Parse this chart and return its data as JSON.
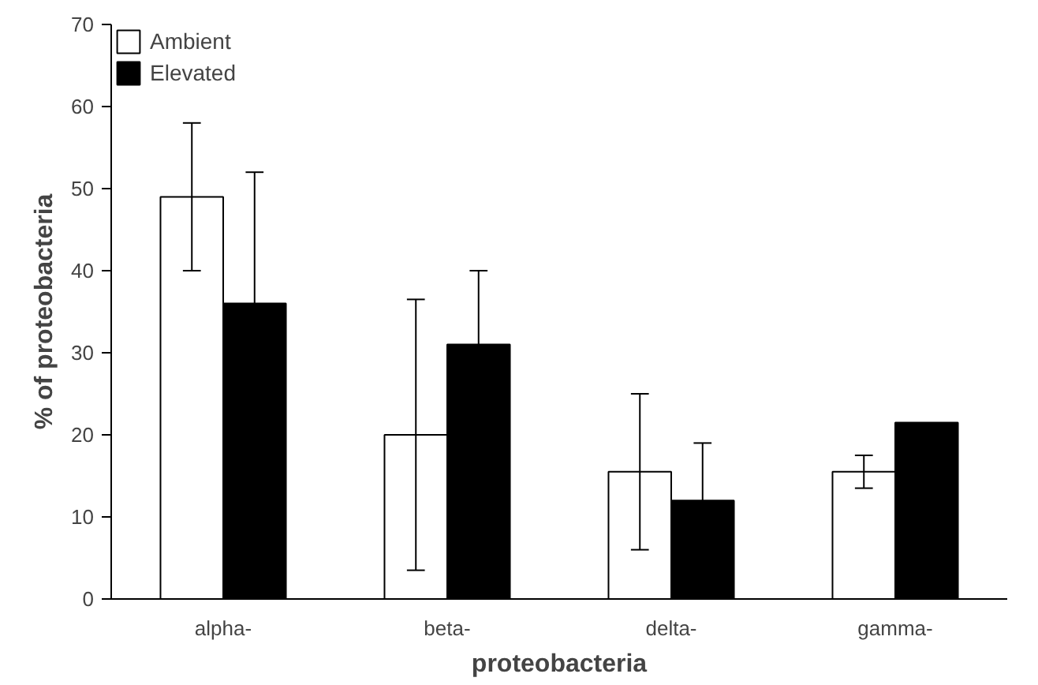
{
  "chart_data": {
    "type": "bar",
    "xlabel": "proteobacteria",
    "ylabel": "% of proteobacteria",
    "categories": [
      "alpha-",
      "beta-",
      "delta-",
      "gamma-"
    ],
    "series": [
      {
        "name": "Ambient",
        "color": "#ffffff",
        "values": [
          49,
          20,
          15.5,
          15.5
        ],
        "errors": [
          9,
          16.5,
          9.5,
          2
        ]
      },
      {
        "name": "Elevated",
        "color": "#000000",
        "values": [
          36,
          31,
          12,
          21.5
        ],
        "errors": [
          16,
          9,
          7,
          null
        ]
      }
    ],
    "ylim": [
      0,
      70
    ],
    "yticks": [
      0,
      10,
      20,
      30,
      40,
      50,
      60,
      70
    ],
    "grid": false,
    "legend": "top left"
  }
}
